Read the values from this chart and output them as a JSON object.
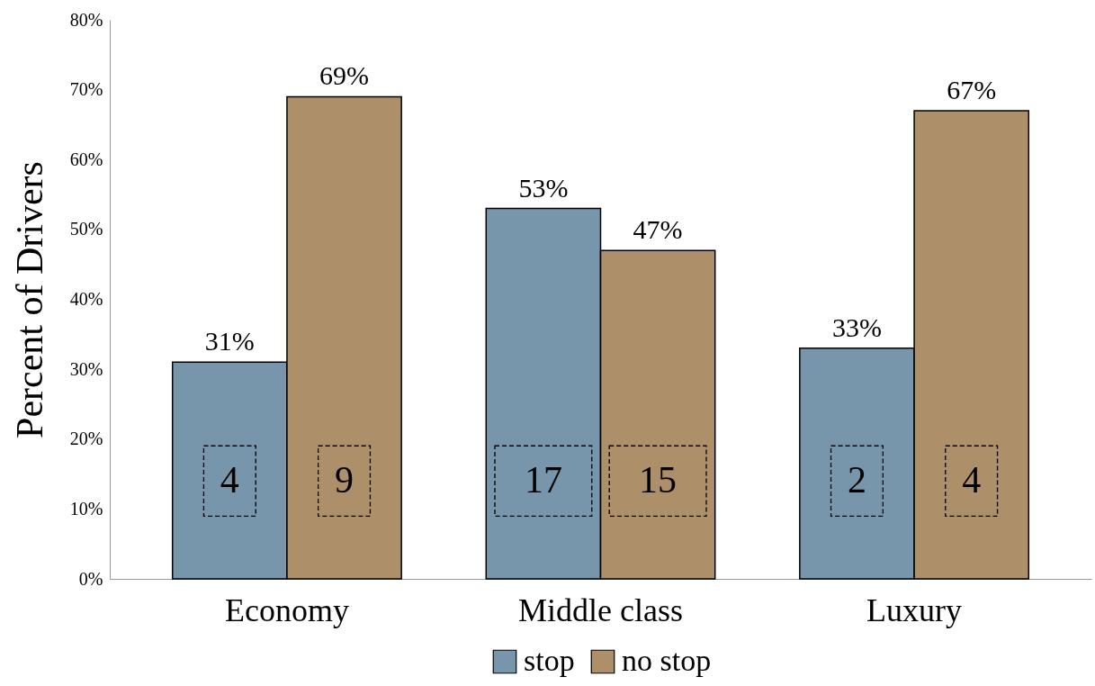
{
  "chart_data": {
    "type": "bar",
    "ylabel": "Percent of Drivers",
    "categories": [
      "Economy",
      "Middle class",
      "Luxury"
    ],
    "series": [
      {
        "name": "stop",
        "color": "#7896ab",
        "values": [
          31,
          53,
          33
        ],
        "value_labels": [
          "31%",
          "53%",
          "33%"
        ]
      },
      {
        "name": "no stop",
        "color": "#ad8f69",
        "values": [
          69,
          47,
          67
        ],
        "value_labels": [
          "69%",
          "47%",
          "67%"
        ]
      }
    ],
    "ylim": [
      0,
      80
    ],
    "yticks": [
      {
        "value": 0,
        "label": "0%"
      },
      {
        "value": 10,
        "label": "10%"
      },
      {
        "value": 20,
        "label": "20%"
      },
      {
        "value": 30,
        "label": "30%"
      },
      {
        "value": 40,
        "label": "40%"
      },
      {
        "value": 50,
        "label": "50%"
      },
      {
        "value": 60,
        "label": "60%"
      },
      {
        "value": 70,
        "label": "70%"
      },
      {
        "value": 80,
        "label": "80%"
      }
    ],
    "annotations": [
      {
        "text": "4",
        "x": "Economy",
        "y": 14
      },
      {
        "text": "9",
        "x": "Economy",
        "y": 14
      },
      {
        "text": "17",
        "x": "Middle class",
        "y": 14
      },
      {
        "text": "15",
        "x": "Middle class",
        "y": 14
      },
      {
        "text": "2",
        "x": "Luxury",
        "y": 14
      },
      {
        "text": "4",
        "x": "Luxury",
        "y": 14
      }
    ],
    "grid": false,
    "legend": "bottom"
  }
}
